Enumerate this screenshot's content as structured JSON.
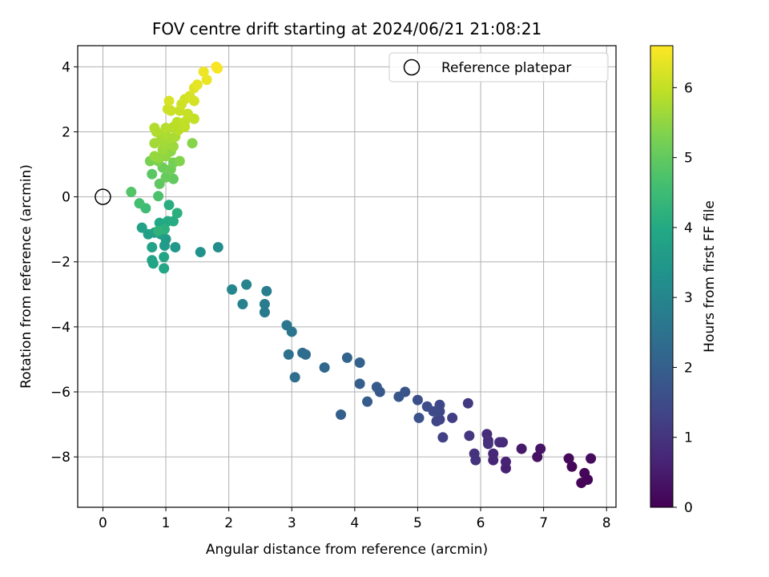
{
  "chart_data": {
    "type": "scatter",
    "title": "FOV centre drift starting at 2024/06/21 21:08:21",
    "xlabel": "Angular distance from reference (arcmin)",
    "ylabel": "Rotation from reference (arcmin)",
    "xlim": [
      -0.4,
      8.15
    ],
    "ylim": [
      -9.55,
      4.65
    ],
    "xticks": [
      0,
      1,
      2,
      3,
      4,
      5,
      6,
      7,
      8
    ],
    "yticks": [
      -8,
      -6,
      -4,
      -2,
      0,
      2,
      4
    ],
    "grid": true,
    "colormap": "viridis",
    "colorbar": {
      "label": "Hours from first FF file",
      "range": [
        0,
        6.6
      ],
      "ticks": [
        0,
        1,
        2,
        3,
        4,
        5,
        6
      ]
    },
    "legend": {
      "placement": "top-right",
      "entries": [
        {
          "label": "Reference platepar",
          "marker": "open-circle"
        }
      ]
    },
    "reference_point": {
      "x": 0,
      "y": 0
    },
    "series": [
      {
        "points": [
          {
            "x": 7.6,
            "y": -8.8,
            "c": 0.05
          },
          {
            "x": 7.7,
            "y": -8.7,
            "c": 0.08
          },
          {
            "x": 7.65,
            "y": -8.5,
            "c": 0.1
          },
          {
            "x": 7.45,
            "y": -8.3,
            "c": 0.12
          },
          {
            "x": 7.4,
            "y": -8.05,
            "c": 0.15
          },
          {
            "x": 7.75,
            "y": -8.05,
            "c": 0.18
          },
          {
            "x": 6.9,
            "y": -8.0,
            "c": 0.3
          },
          {
            "x": 6.95,
            "y": -7.75,
            "c": 0.35
          },
          {
            "x": 6.65,
            "y": -7.75,
            "c": 0.45
          },
          {
            "x": 6.4,
            "y": -8.35,
            "c": 0.6
          },
          {
            "x": 6.4,
            "y": -8.15,
            "c": 0.65
          },
          {
            "x": 6.2,
            "y": -8.1,
            "c": 0.7
          },
          {
            "x": 6.2,
            "y": -7.9,
            "c": 0.75
          },
          {
            "x": 6.35,
            "y": -7.55,
            "c": 0.8
          },
          {
            "x": 6.3,
            "y": -7.55,
            "c": 0.82
          },
          {
            "x": 6.1,
            "y": -7.3,
            "c": 0.85
          },
          {
            "x": 6.12,
            "y": -7.5,
            "c": 0.88
          },
          {
            "x": 6.12,
            "y": -7.6,
            "c": 0.9
          },
          {
            "x": 5.9,
            "y": -7.9,
            "c": 0.95
          },
          {
            "x": 5.92,
            "y": -8.1,
            "c": 1.0
          },
          {
            "x": 5.82,
            "y": -7.35,
            "c": 1.05
          },
          {
            "x": 5.8,
            "y": -6.35,
            "c": 1.1
          },
          {
            "x": 5.55,
            "y": -6.8,
            "c": 1.2
          },
          {
            "x": 5.4,
            "y": -7.4,
            "c": 1.25
          },
          {
            "x": 5.35,
            "y": -6.85,
            "c": 1.3
          },
          {
            "x": 5.3,
            "y": -6.9,
            "c": 1.35
          },
          {
            "x": 5.35,
            "y": -6.4,
            "c": 1.4
          },
          {
            "x": 5.35,
            "y": -6.6,
            "c": 1.45
          },
          {
            "x": 5.25,
            "y": -6.6,
            "c": 1.5
          },
          {
            "x": 5.15,
            "y": -6.45,
            "c": 1.55
          },
          {
            "x": 5.0,
            "y": -6.25,
            "c": 1.6
          },
          {
            "x": 5.02,
            "y": -6.8,
            "c": 1.65
          },
          {
            "x": 4.8,
            "y": -6.0,
            "c": 1.7
          },
          {
            "x": 4.7,
            "y": -6.15,
            "c": 1.75
          },
          {
            "x": 4.4,
            "y": -6.0,
            "c": 1.8
          },
          {
            "x": 4.35,
            "y": -5.85,
            "c": 1.85
          },
          {
            "x": 4.2,
            "y": -6.3,
            "c": 1.9
          },
          {
            "x": 4.08,
            "y": -5.75,
            "c": 1.95
          },
          {
            "x": 3.78,
            "y": -6.7,
            "c": 2.0
          },
          {
            "x": 4.08,
            "y": -5.1,
            "c": 2.05
          },
          {
            "x": 3.88,
            "y": -4.95,
            "c": 2.1
          },
          {
            "x": 3.52,
            "y": -5.25,
            "c": 2.2
          },
          {
            "x": 3.22,
            "y": -4.85,
            "c": 2.3
          },
          {
            "x": 3.17,
            "y": -4.8,
            "c": 2.35
          },
          {
            "x": 3.05,
            "y": -5.55,
            "c": 2.4
          },
          {
            "x": 2.95,
            "y": -4.85,
            "c": 2.45
          },
          {
            "x": 3.0,
            "y": -4.15,
            "c": 2.55
          },
          {
            "x": 2.92,
            "y": -3.95,
            "c": 2.6
          },
          {
            "x": 2.57,
            "y": -3.55,
            "c": 2.7
          },
          {
            "x": 2.57,
            "y": -3.3,
            "c": 2.75
          },
          {
            "x": 2.6,
            "y": -2.9,
            "c": 2.8
          },
          {
            "x": 2.22,
            "y": -3.3,
            "c": 2.9
          },
          {
            "x": 2.28,
            "y": -2.7,
            "c": 2.95
          },
          {
            "x": 2.05,
            "y": -2.85,
            "c": 3.0
          },
          {
            "x": 1.83,
            "y": -1.55,
            "c": 3.2
          },
          {
            "x": 1.55,
            "y": -1.7,
            "c": 3.3
          },
          {
            "x": 1.15,
            "y": -1.55,
            "c": 3.5
          },
          {
            "x": 0.98,
            "y": -1.5,
            "c": 3.55
          },
          {
            "x": 1.0,
            "y": -1.3,
            "c": 3.6
          },
          {
            "x": 0.92,
            "y": -1.15,
            "c": 3.65
          },
          {
            "x": 0.82,
            "y": -1.1,
            "c": 3.7
          },
          {
            "x": 0.72,
            "y": -1.15,
            "c": 3.72
          },
          {
            "x": 0.62,
            "y": -0.95,
            "c": 3.75
          },
          {
            "x": 0.78,
            "y": -1.55,
            "c": 3.8
          },
          {
            "x": 0.78,
            "y": -1.95,
            "c": 3.82
          },
          {
            "x": 0.8,
            "y": -2.05,
            "c": 3.85
          },
          {
            "x": 0.97,
            "y": -1.85,
            "c": 3.88
          },
          {
            "x": 0.97,
            "y": -2.2,
            "c": 3.9
          },
          {
            "x": 0.9,
            "y": -0.8,
            "c": 3.95
          },
          {
            "x": 1.03,
            "y": -0.75,
            "c": 4.0
          },
          {
            "x": 1.12,
            "y": -0.75,
            "c": 4.05
          },
          {
            "x": 1.05,
            "y": -0.25,
            "c": 4.1
          },
          {
            "x": 1.18,
            "y": -0.5,
            "c": 4.15
          },
          {
            "x": 0.98,
            "y": -1.0,
            "c": 4.2
          },
          {
            "x": 0.88,
            "y": -1.05,
            "c": 4.25
          },
          {
            "x": 0.68,
            "y": -0.35,
            "c": 4.5
          },
          {
            "x": 0.58,
            "y": -0.2,
            "c": 4.6
          },
          {
            "x": 0.88,
            "y": 0.02,
            "c": 4.7
          },
          {
            "x": 0.45,
            "y": 0.15,
            "c": 4.8
          },
          {
            "x": 0.78,
            "y": 0.7,
            "c": 4.9
          },
          {
            "x": 0.9,
            "y": 0.4,
            "c": 4.95
          },
          {
            "x": 1.12,
            "y": 0.55,
            "c": 5.0
          },
          {
            "x": 1.0,
            "y": 0.6,
            "c": 5.05
          },
          {
            "x": 0.95,
            "y": 0.9,
            "c": 5.1
          },
          {
            "x": 1.08,
            "y": 0.85,
            "c": 5.15
          },
          {
            "x": 1.12,
            "y": 1.05,
            "c": 5.2
          },
          {
            "x": 0.75,
            "y": 1.1,
            "c": 5.25
          },
          {
            "x": 0.88,
            "y": 1.1,
            "c": 5.3
          },
          {
            "x": 1.22,
            "y": 1.1,
            "c": 5.35
          },
          {
            "x": 1.42,
            "y": 1.65,
            "c": 5.4
          },
          {
            "x": 1.08,
            "y": 1.4,
            "c": 5.45
          },
          {
            "x": 1.0,
            "y": 1.25,
            "c": 5.5
          },
          {
            "x": 0.88,
            "y": 1.2,
            "c": 5.52
          },
          {
            "x": 0.82,
            "y": 1.25,
            "c": 5.55
          },
          {
            "x": 0.95,
            "y": 1.45,
            "c": 5.6
          },
          {
            "x": 1.12,
            "y": 1.55,
            "c": 5.62
          },
          {
            "x": 0.98,
            "y": 1.6,
            "c": 5.65
          },
          {
            "x": 0.82,
            "y": 1.65,
            "c": 5.68
          },
          {
            "x": 0.92,
            "y": 1.75,
            "c": 5.7
          },
          {
            "x": 1.05,
            "y": 1.8,
            "c": 5.72
          },
          {
            "x": 1.15,
            "y": 1.85,
            "c": 5.75
          },
          {
            "x": 1.0,
            "y": 1.95,
            "c": 5.78
          },
          {
            "x": 0.85,
            "y": 2.0,
            "c": 5.8
          },
          {
            "x": 0.82,
            "y": 2.12,
            "c": 5.82
          },
          {
            "x": 1.0,
            "y": 2.12,
            "c": 5.85
          },
          {
            "x": 1.12,
            "y": 2.15,
            "c": 5.88
          },
          {
            "x": 1.2,
            "y": 2.05,
            "c": 5.9
          },
          {
            "x": 1.18,
            "y": 2.3,
            "c": 5.92
          },
          {
            "x": 1.3,
            "y": 2.15,
            "c": 5.95
          },
          {
            "x": 1.3,
            "y": 2.3,
            "c": 5.97
          },
          {
            "x": 1.45,
            "y": 2.4,
            "c": 6.0
          },
          {
            "x": 1.35,
            "y": 2.55,
            "c": 6.02
          },
          {
            "x": 1.22,
            "y": 2.65,
            "c": 6.05
          },
          {
            "x": 1.08,
            "y": 2.65,
            "c": 6.07
          },
          {
            "x": 1.03,
            "y": 2.7,
            "c": 6.1
          },
          {
            "x": 1.25,
            "y": 2.85,
            "c": 6.12
          },
          {
            "x": 1.3,
            "y": 3.0,
            "c": 6.15
          },
          {
            "x": 1.45,
            "y": 2.95,
            "c": 6.18
          },
          {
            "x": 1.38,
            "y": 3.1,
            "c": 6.2
          },
          {
            "x": 1.05,
            "y": 2.95,
            "c": 6.22
          },
          {
            "x": 1.45,
            "y": 3.35,
            "c": 6.3
          },
          {
            "x": 1.5,
            "y": 3.45,
            "c": 6.35
          },
          {
            "x": 1.65,
            "y": 3.6,
            "c": 6.4
          },
          {
            "x": 1.6,
            "y": 3.85,
            "c": 6.45
          },
          {
            "x": 1.82,
            "y": 3.95,
            "c": 6.5
          },
          {
            "x": 1.8,
            "y": 4.0,
            "c": 6.55
          }
        ]
      }
    ]
  }
}
